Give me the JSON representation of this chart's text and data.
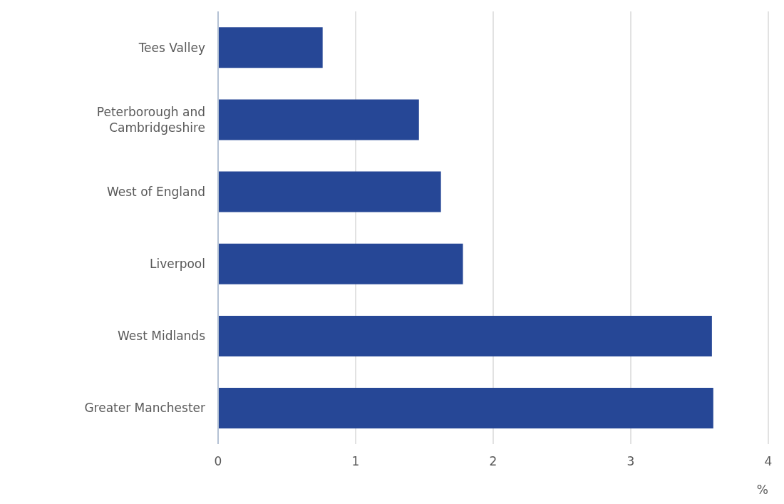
{
  "chart_data": {
    "type": "bar",
    "orientation": "horizontal",
    "categories": [
      "Tees Valley",
      "Peterborough and\nCambridgeshire",
      "West of England",
      "Liverpool",
      "West Midlands",
      "Greater Manchester"
    ],
    "values": [
      0.76,
      1.46,
      1.62,
      1.78,
      3.59,
      3.6
    ],
    "color": "#264796",
    "xlim": [
      0,
      4
    ],
    "xticks": [
      0,
      1,
      2,
      3,
      4
    ],
    "xlabel": "%",
    "grid": "x"
  }
}
